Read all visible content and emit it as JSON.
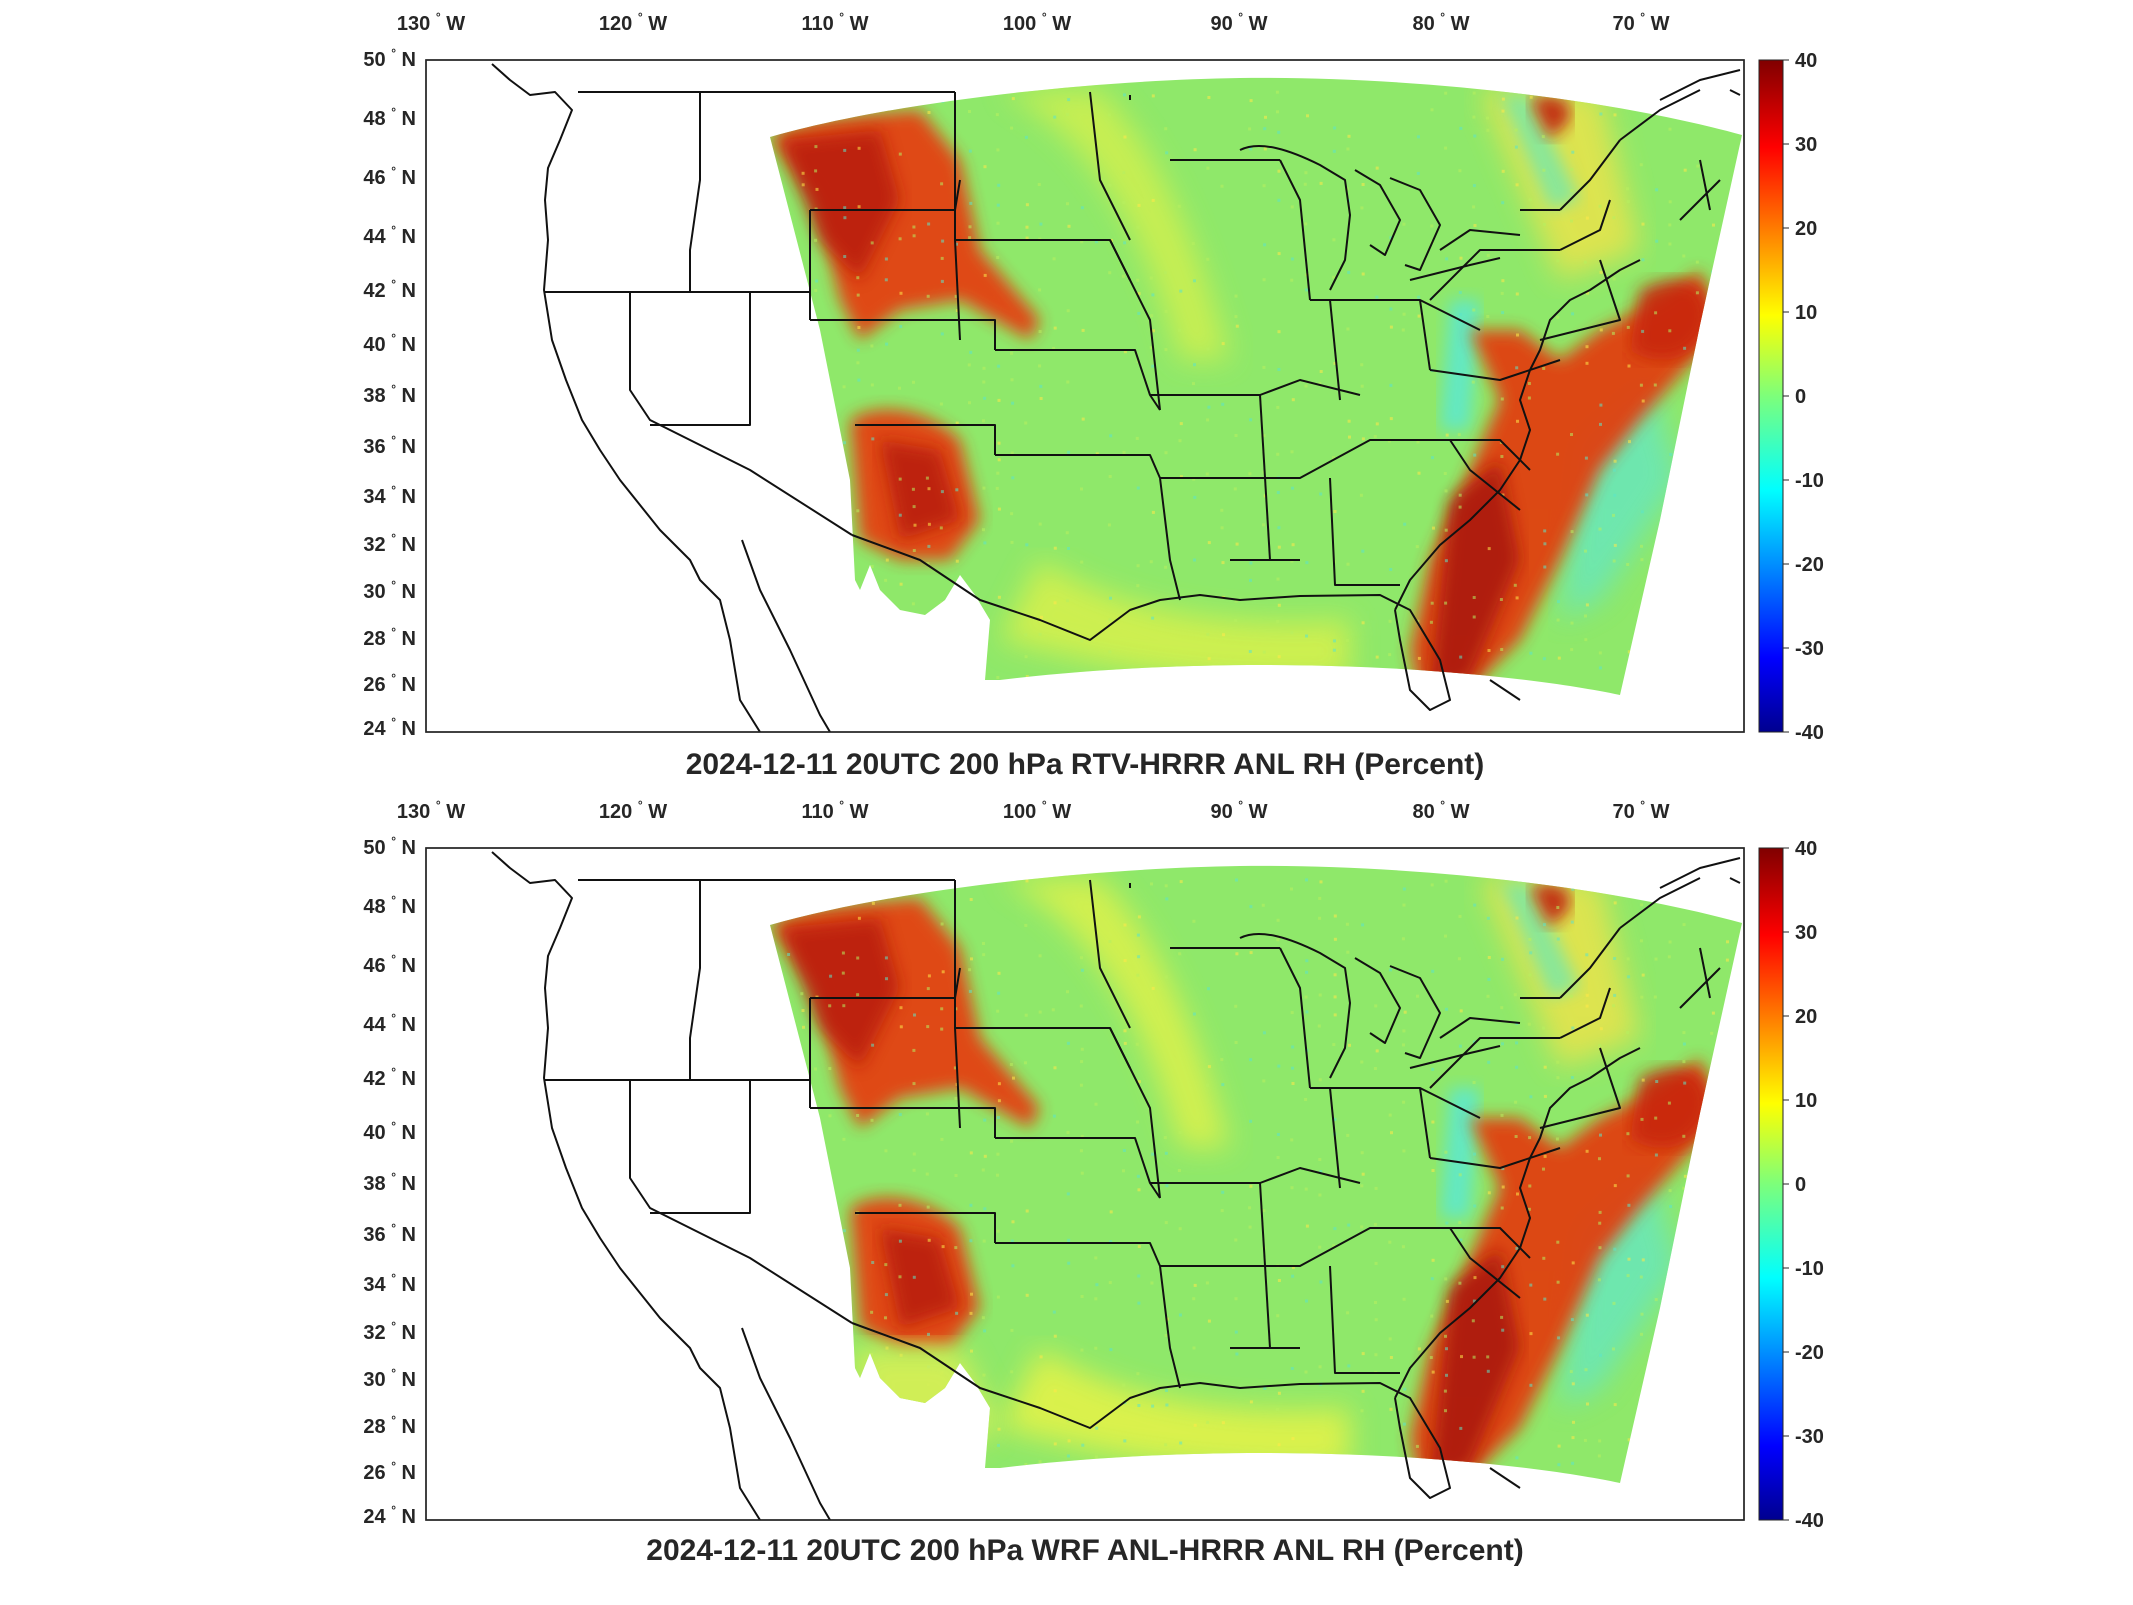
{
  "figure": {
    "panels": [
      {
        "title": "2024-12-11 20UTC 200 hPa RTV-HRRR ANL RH (Percent)",
        "field_variant": "rtv"
      },
      {
        "title": "2024-12-11 20UTC 200 hPa WRF ANL-HRRR ANL RH (Percent)",
        "field_variant": "wrf"
      }
    ],
    "lon_ticks": [
      "130",
      "120",
      "110",
      "100",
      "90",
      "80",
      "70"
    ],
    "lon_suffix": "W",
    "lat_ticks": [
      "50",
      "48",
      "46",
      "44",
      "42",
      "40",
      "38",
      "36",
      "34",
      "32",
      "30",
      "28",
      "26",
      "24"
    ],
    "lat_suffix": "N",
    "degree_symbol": "°",
    "colorbar": {
      "ticks": [
        "40",
        "30",
        "20",
        "10",
        "0",
        "-10",
        "-20",
        "-30",
        "-40"
      ],
      "range": [
        -40,
        40
      ],
      "colormap": "jet"
    },
    "map_region": "CONUS",
    "lon_range": [
      -132,
      -66
    ],
    "lat_range": [
      24,
      50
    ]
  }
}
